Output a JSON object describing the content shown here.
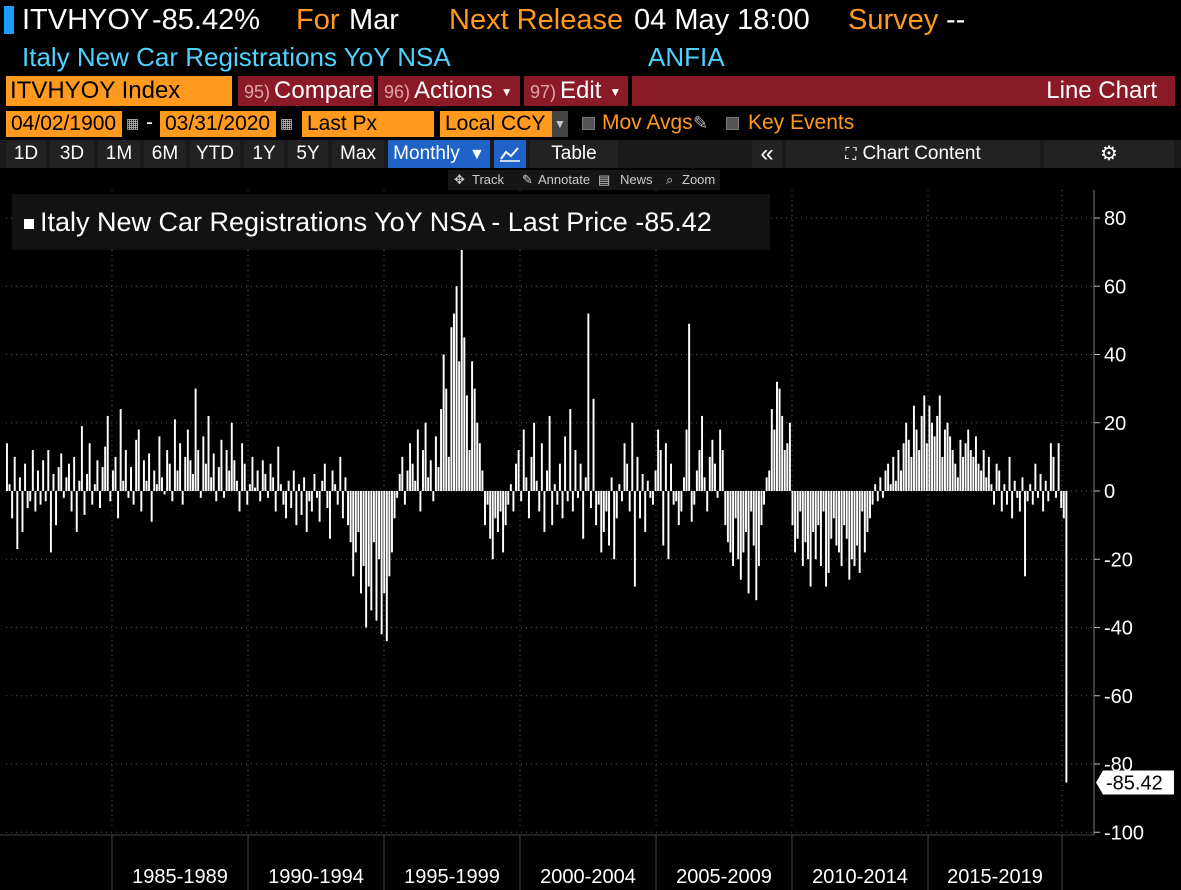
{
  "header": {
    "ticker": "ITVHYOY",
    "last_value": "-85.42%",
    "for_label": "For",
    "for_period": "Mar",
    "next_release_label": "Next Release",
    "next_release_value": "04 May 18:00",
    "survey_label": "Survey",
    "survey_value": "--",
    "description": "Italy New Car Registrations YoY NSA",
    "source": "ANFIA"
  },
  "command_bar": {
    "index_field": "ITVHYOY Index",
    "compare": {
      "num": "95)",
      "label": "Compare"
    },
    "actions": {
      "num": "96)",
      "label": "Actions"
    },
    "edit": {
      "num": "97)",
      "label": "Edit"
    },
    "chart_type": "Line Chart"
  },
  "date_bar": {
    "start_date": "04/02/1900",
    "separator": "-",
    "end_date": "03/31/2020",
    "field": "Last Px",
    "currency": "Local CCY",
    "mov_avgs": "Mov Avgs",
    "key_events": "Key Events"
  },
  "tabs": {
    "ranges": [
      "1D",
      "3D",
      "1M",
      "6M",
      "YTD",
      "1Y",
      "5Y",
      "Max"
    ],
    "frequency": "Monthly",
    "table": "Table",
    "collapse": "«",
    "chart_content": "Chart Content"
  },
  "chart_toolbar": {
    "track": "Track",
    "annotate": "Annotate",
    "news": "News",
    "zoom": "Zoom"
  },
  "colors": {
    "orange": "#ff9a1f",
    "cyan": "#4fd2ff",
    "command_red": "#8a1a25",
    "selected_blue": "#1f63c8",
    "bars": "#ffffff"
  },
  "chart_data": {
    "type": "bar",
    "title": "Italy New Car Registrations YoY NSA - Last Price -85.42",
    "ylim": [
      -104,
      84
    ],
    "yticks": [
      80,
      60,
      40,
      20,
      0,
      -20,
      -40,
      -60,
      -80,
      -100
    ],
    "x_period_labels": [
      "1985-1989",
      "1990-1994",
      "1995-1999",
      "2000-2004",
      "2005-2009",
      "2010-2014",
      "2015-2019"
    ],
    "x_range": [
      "1984-03",
      "2020-03"
    ],
    "last_value_label": "-85.42",
    "series": [
      {
        "name": "Italy New Car Registrations YoY NSA",
        "start": "1984-03",
        "frequency": "monthly",
        "values": [
          14,
          2,
          -8,
          10,
          -17,
          4,
          -12,
          8,
          -5,
          -3,
          12,
          -6,
          6,
          -4,
          9,
          -3,
          12,
          -18,
          5,
          -10,
          7,
          11,
          -2,
          4,
          8,
          -6,
          10,
          -12,
          3,
          19,
          -7,
          5,
          14,
          -4,
          2,
          9,
          -5,
          7,
          13,
          22,
          -3,
          6,
          10,
          -8,
          24,
          3,
          12,
          -2,
          7,
          -4,
          15,
          18,
          -6,
          9,
          3,
          11,
          -9,
          6,
          2,
          16,
          4,
          -1,
          12,
          8,
          -3,
          21,
          6,
          14,
          -4,
          10,
          18,
          9,
          5,
          30,
          12,
          -2,
          16,
          8,
          22,
          4,
          11,
          -3,
          7,
          15,
          -2,
          12,
          6,
          20,
          9,
          3,
          -6,
          14,
          8,
          -4,
          2,
          10,
          1,
          6,
          -3,
          9,
          5,
          -2,
          8,
          4,
          -6,
          13,
          2,
          -4,
          -8,
          3,
          -5,
          6,
          -10,
          2,
          -7,
          4,
          -12,
          -3,
          -6,
          5,
          -2,
          -9,
          3,
          8,
          -5,
          -14,
          6,
          2,
          -4,
          10,
          -8,
          4,
          -10,
          -15,
          -25,
          -18,
          -12,
          -30,
          -22,
          -40,
          -28,
          -35,
          -15,
          -38,
          -20,
          -42,
          -30,
          -44,
          -25,
          -18,
          -8,
          -2,
          5,
          10,
          -4,
          6,
          14,
          8,
          3,
          18,
          -6,
          12,
          20,
          4,
          9,
          -3,
          16,
          7,
          24,
          40,
          30,
          10,
          48,
          52,
          60,
          38,
          80,
          45,
          28,
          12,
          38,
          30,
          20,
          14,
          6,
          -10,
          -4,
          -14,
          -20,
          -8,
          -12,
          -6,
          -18,
          -10,
          -4,
          2,
          -6,
          8,
          12,
          -3,
          18,
          4,
          -8,
          10,
          20,
          3,
          -6,
          14,
          -12,
          6,
          22,
          -10,
          2,
          -4,
          8,
          -8,
          16,
          -3,
          24,
          -6,
          12,
          -2,
          8,
          -14,
          4,
          52,
          -5,
          27,
          -10,
          -4,
          -18,
          -12,
          -6,
          -16,
          4,
          -20,
          -8,
          2,
          -3,
          14,
          8,
          -6,
          20,
          -28,
          10,
          -8,
          5,
          -12,
          3,
          -2,
          -4,
          6,
          18,
          12,
          -16,
          14,
          -20,
          8,
          -4,
          -3,
          -10,
          -6,
          4,
          18,
          49,
          -9,
          -4,
          6,
          12,
          22,
          4,
          -6,
          10,
          15,
          8,
          -2,
          18,
          12,
          -10,
          -15,
          -18,
          -22,
          -8,
          -20,
          -26,
          -18,
          -12,
          -30,
          -6,
          -16,
          -32,
          -22,
          -10,
          -4,
          4,
          6,
          24,
          18,
          32,
          30,
          22,
          12,
          14,
          20,
          -10,
          -18,
          -14,
          -6,
          -22,
          -15,
          -20,
          -28,
          -12,
          -20,
          -10,
          -22,
          -6,
          -28,
          -24,
          -14,
          -8,
          -16,
          -18,
          -22,
          -10,
          -14,
          -26,
          -20,
          -22,
          -16,
          -24,
          -6,
          -18,
          -12,
          -8,
          -4,
          2,
          -3,
          4,
          -2,
          6,
          8,
          2,
          10,
          3,
          12,
          6,
          14,
          20,
          15,
          10,
          25,
          18,
          12,
          22,
          28,
          14,
          25,
          20,
          16,
          22,
          28,
          10,
          18,
          20,
          16,
          12,
          8,
          4,
          15,
          10,
          14,
          18,
          12,
          10,
          16,
          8,
          6,
          12,
          4,
          10,
          2,
          -4,
          8,
          6,
          -6,
          2,
          -4,
          10,
          -8,
          3,
          -2,
          -6,
          4,
          -25,
          -3,
          2,
          -4,
          8,
          -2,
          5,
          -6,
          3,
          -3,
          14,
          10,
          -2,
          14,
          -5,
          -8,
          -85.42
        ]
      }
    ]
  }
}
